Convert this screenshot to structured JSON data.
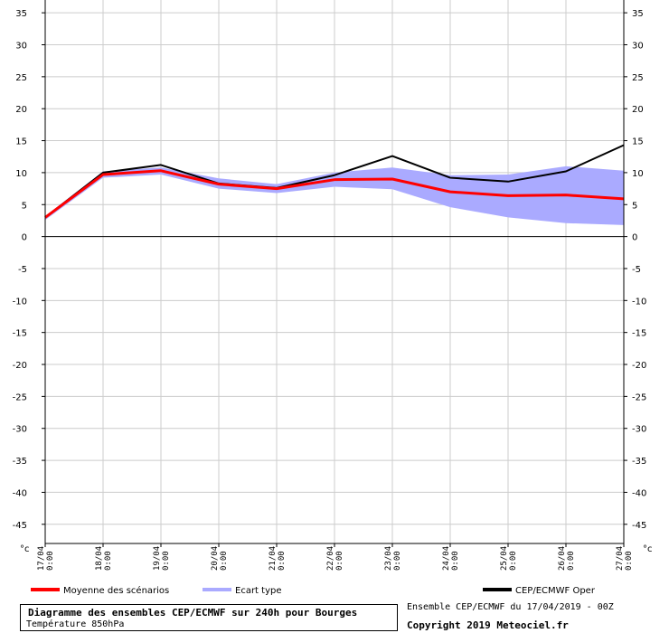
{
  "title": "Diagramme des ensembles CEP/ECMWF sur 240h pour Bourges",
  "subtitle": "Température 850hPa",
  "run_info": "Ensemble CEP/ECMWF du 17/04/2019 - 00Z",
  "copyright": "Copyright 2019 Meteociel.fr",
  "unit_label": "°c",
  "legend": {
    "mean": "Moyenne des scénarios",
    "spread": "Ecart type",
    "oper": "CEP/ECMWF Oper"
  },
  "colors": {
    "mean": "#ff0000",
    "spread": "#aaaaff",
    "oper": "#000000",
    "grid": "#cccccc"
  },
  "chart_data": {
    "type": "line",
    "x": [
      "17/04",
      "18/04",
      "19/04",
      "20/04",
      "21/04",
      "22/04",
      "23/04",
      "24/04",
      "25/04",
      "26/04",
      "27/04"
    ],
    "x_time": "0:00",
    "yticks": [
      35,
      30,
      25,
      20,
      15,
      10,
      5,
      0,
      -5,
      -10,
      -15,
      -20,
      -25,
      -30,
      -35,
      -40,
      -45
    ],
    "ylim": [
      -48,
      37
    ],
    "grid": true,
    "series": [
      {
        "name": "Moyenne des scénarios",
        "values": [
          3.0,
          9.7,
          10.3,
          8.2,
          7.5,
          8.9,
          9.0,
          7.0,
          6.4,
          6.5,
          5.9
        ]
      },
      {
        "name": "CEP/ECMWF Oper",
        "values": [
          3.0,
          10.0,
          11.2,
          8.3,
          7.6,
          9.6,
          12.6,
          9.2,
          8.6,
          10.2,
          14.3
        ]
      }
    ],
    "band": {
      "name": "Ecart type",
      "upper": [
        3.2,
        10.2,
        10.8,
        9.1,
        8.2,
        10.0,
        10.8,
        9.6,
        9.7,
        11.0,
        10.3
      ],
      "lower": [
        2.6,
        9.2,
        9.7,
        7.5,
        6.8,
        7.8,
        7.4,
        4.6,
        3.0,
        2.1,
        1.8
      ]
    }
  }
}
